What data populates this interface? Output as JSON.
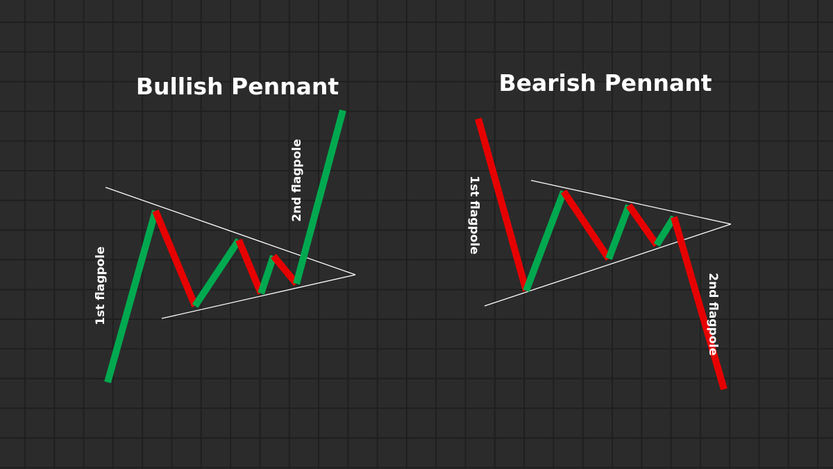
{
  "colors": {
    "background": "#2b2b2b",
    "grid": "#1f1f1f",
    "bullish": "#00a94f",
    "bearish": "#e60000",
    "trendline": "#ffffff"
  },
  "bullish": {
    "title": "Bullish Pennant",
    "first_label": "1st flagpole",
    "second_label": "2nd flagpole"
  },
  "bearish": {
    "title": "Bearish Pennant",
    "first_label": "1st flagpole",
    "second_label": "2nd flagpole"
  }
}
